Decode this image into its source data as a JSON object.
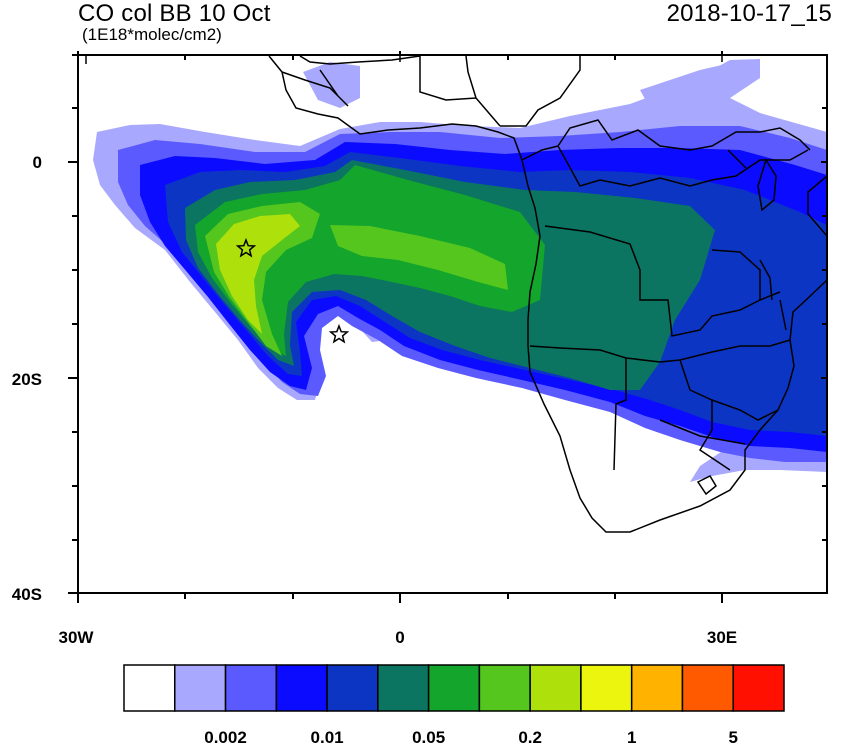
{
  "header": {
    "title": "CO col BB 10 Oct",
    "units": "(1E18*molec/cm2)",
    "timestamp": "2018-10-17_15"
  },
  "axes": {
    "lat_ticks": [
      "0",
      "20S",
      "40S"
    ],
    "lon_ticks": [
      "30W",
      "0",
      "30E"
    ]
  },
  "colorbar": {
    "colors": [
      "#ffffff",
      "#a8a8ff",
      "#5a5aff",
      "#0b0bff",
      "#0c35c4",
      "#0b7561",
      "#13a52c",
      "#54c61d",
      "#aee00b",
      "#ebf50e",
      "#ffb300",
      "#ff5a00",
      "#ff1000"
    ],
    "labels": [
      "0.002",
      "0.01",
      "0.05",
      "0.2",
      "1",
      "5"
    ]
  },
  "markers": {
    "count": 2,
    "icon": "star-icon"
  }
}
